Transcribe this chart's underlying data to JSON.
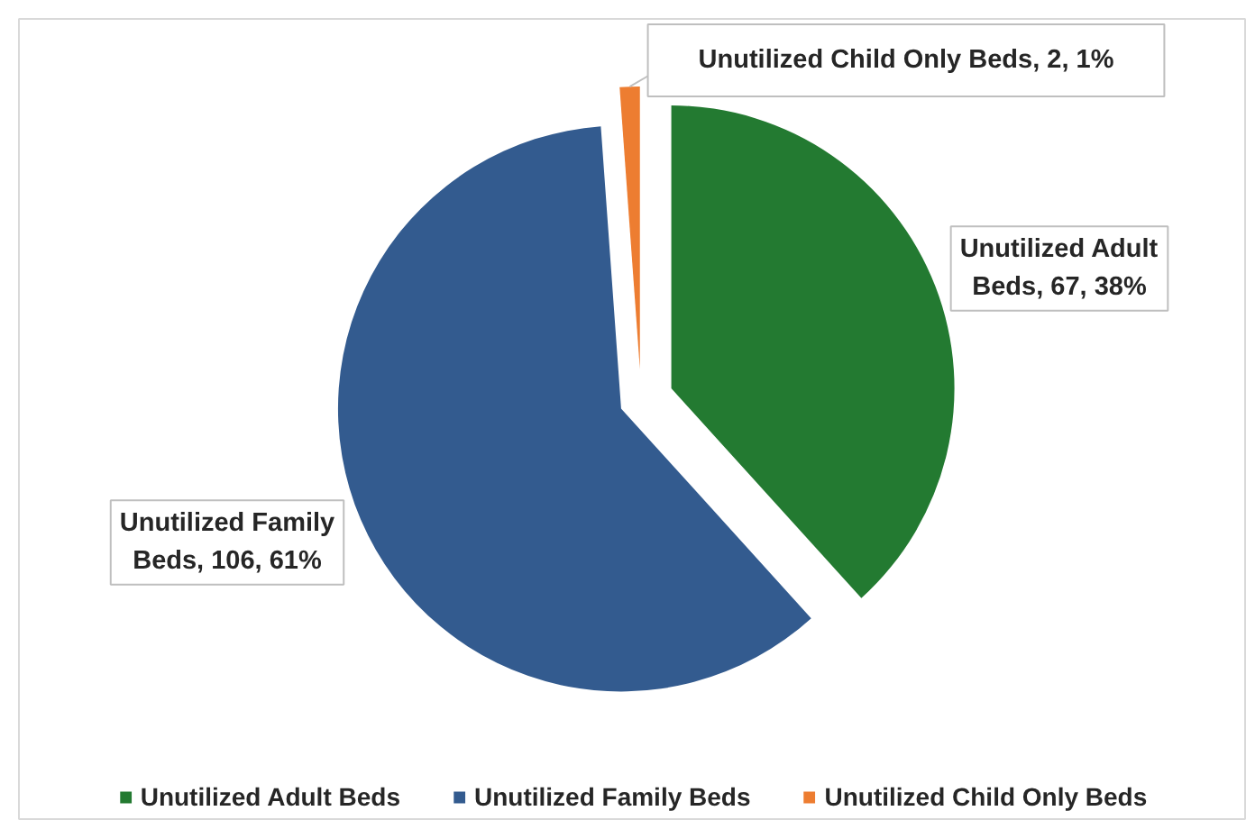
{
  "chart_data": {
    "type": "pie",
    "categories": [
      "Unutilized Adult Beds",
      "Unutilized Family Beds",
      "Unutilized Child Only Beds"
    ],
    "values": [
      67,
      106,
      2
    ],
    "colors": [
      "#237a31",
      "#335b8f",
      "#ed7d31"
    ],
    "value_labels": [
      "Unutilized Adult Beds, 67, 38%",
      "Unutilized Family Beds, 106, 61%",
      "Unutilized Child Only Beds, 2, 1%"
    ],
    "legend": "bottom"
  }
}
